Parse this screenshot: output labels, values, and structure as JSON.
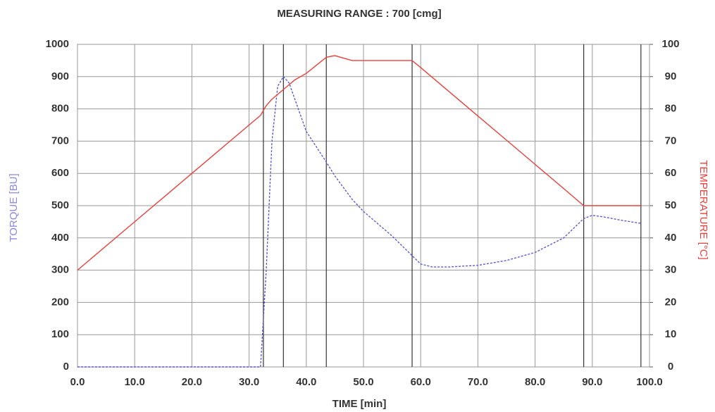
{
  "chart_data": {
    "type": "line",
    "title": "MEASURING RANGE : 700 [cmg]",
    "x_label": "TIME  [min]",
    "y_label": "TORQUE [BU]",
    "y2_label": "TEMPERATURE  [°C]",
    "x": [
      0,
      10,
      20,
      30,
      32,
      33,
      34,
      35,
      36,
      37,
      38,
      40,
      43.5,
      45,
      48,
      50,
      55,
      58.5,
      60,
      62,
      65,
      70,
      75,
      80,
      85,
      88.5,
      90,
      92,
      95,
      98.5
    ],
    "series": [
      {
        "name": "TORQUE [BU]",
        "color": "#5b5bd6",
        "dash": true,
        "values": [
          0,
          0,
          0,
          0,
          0,
          300,
          700,
          870,
          900,
          880,
          830,
          730,
          635,
          592,
          520,
          482,
          406,
          345,
          319,
          310,
          310,
          315,
          330,
          355,
          400,
          460,
          470,
          465,
          455,
          445
        ]
      },
      {
        "name": "TEMPERATURE  [°C]",
        "color": "#e8413c",
        "axis": "y2",
        "values": [
          30,
          45,
          60,
          75,
          78,
          81,
          83,
          84.5,
          86,
          87.5,
          89,
          91,
          96,
          96.5,
          95,
          95,
          95,
          95,
          92.8,
          89.8,
          85.3,
          77.8,
          70.3,
          62.8,
          55.3,
          50,
          50,
          50,
          50,
          50
        ]
      }
    ],
    "markers": [
      32.5,
      36,
      43.5,
      58.5,
      88.5,
      98.5
    ],
    "xlim": [
      0,
      100
    ],
    "xticks": [
      {
        "value": 0,
        "label": "0.0"
      },
      {
        "value": 10,
        "label": "10.0"
      },
      {
        "value": 20,
        "label": "20.0"
      },
      {
        "value": 30,
        "label": "30.0"
      },
      {
        "value": 40,
        "label": "40.0"
      },
      {
        "value": 50,
        "label": "50.0"
      },
      {
        "value": 60,
        "label": "60.0"
      },
      {
        "value": 70,
        "label": "70.0"
      },
      {
        "value": 80,
        "label": "80.0"
      },
      {
        "value": 90,
        "label": "90.0"
      },
      {
        "value": 100,
        "label": "100.0"
      }
    ],
    "ylim": [
      0,
      1000
    ],
    "yticks": [
      0,
      100,
      200,
      300,
      400,
      500,
      600,
      700,
      800,
      900,
      1000
    ],
    "y2lim": [
      0,
      100
    ],
    "y2ticks": [
      0,
      10,
      20,
      30,
      40,
      50,
      60,
      70,
      80,
      90,
      100
    ],
    "grid": true
  }
}
